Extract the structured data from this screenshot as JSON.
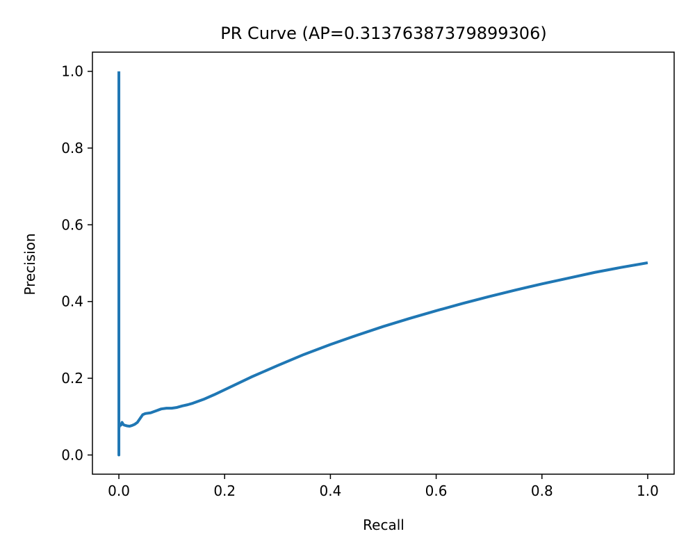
{
  "chart_data": {
    "type": "line",
    "title": "PR Curve (AP=0.31376387379899306)",
    "xlabel": "Recall",
    "ylabel": "Precision",
    "xlim": [
      -0.05,
      1.05
    ],
    "ylim": [
      -0.05,
      1.05
    ],
    "grid": false,
    "legend": "none",
    "color": "#1f77b4",
    "x_ticks": [
      0.0,
      0.2,
      0.4,
      0.6,
      0.8,
      1.0
    ],
    "x_tick_labels": [
      "0.0",
      "0.2",
      "0.4",
      "0.6",
      "0.8",
      "1.0"
    ],
    "y_ticks": [
      0.0,
      0.2,
      0.4,
      0.6,
      0.8,
      1.0
    ],
    "y_tick_labels": [
      "0.0",
      "0.2",
      "0.4",
      "0.6",
      "0.8",
      "1.0"
    ],
    "series": [
      {
        "x": [
          0.0,
          0.0,
          0.0,
          0.002,
          0.004,
          0.006,
          0.008,
          0.01,
          0.015,
          0.02,
          0.025,
          0.03,
          0.035,
          0.04,
          0.045,
          0.05,
          0.06,
          0.07,
          0.08,
          0.09,
          0.1,
          0.11,
          0.12,
          0.13,
          0.14,
          0.15,
          0.16,
          0.18,
          0.2,
          0.25,
          0.3,
          0.35,
          0.4,
          0.45,
          0.5,
          0.55,
          0.6,
          0.65,
          0.7,
          0.75,
          0.8,
          0.85,
          0.9,
          0.95,
          1.0
        ],
        "y": [
          1.0,
          0.0,
          0.07,
          0.08,
          0.078,
          0.085,
          0.08,
          0.078,
          0.076,
          0.075,
          0.077,
          0.08,
          0.085,
          0.095,
          0.105,
          0.108,
          0.11,
          0.115,
          0.12,
          0.122,
          0.122,
          0.124,
          0.128,
          0.131,
          0.135,
          0.14,
          0.145,
          0.157,
          0.17,
          0.203,
          0.233,
          0.262,
          0.288,
          0.312,
          0.335,
          0.356,
          0.376,
          0.395,
          0.413,
          0.43,
          0.446,
          0.461,
          0.476,
          0.489,
          0.501
        ]
      }
    ]
  }
}
